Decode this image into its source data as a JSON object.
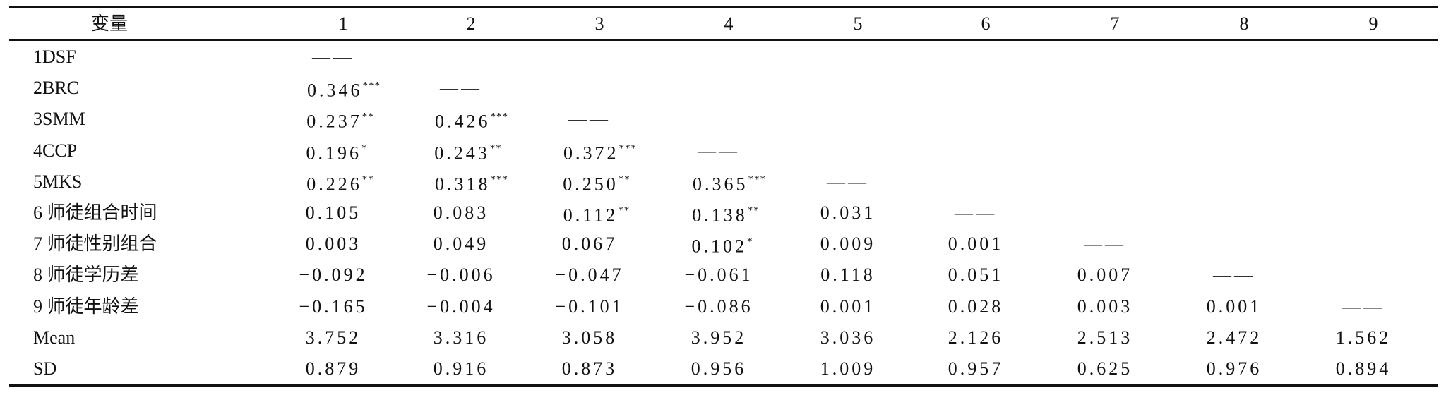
{
  "table": {
    "header": [
      "变量",
      "1",
      "2",
      "3",
      "4",
      "5",
      "6",
      "7",
      "8",
      "9"
    ],
    "rows": [
      {
        "label": "1DSF",
        "cells": [
          {
            "value": "——"
          }
        ]
      },
      {
        "label": "2BRC",
        "cells": [
          {
            "value": "0.346",
            "sig": "***"
          },
          {
            "value": "——"
          }
        ]
      },
      {
        "label": "3SMM",
        "cells": [
          {
            "value": "0.237",
            "sig": "**"
          },
          {
            "value": "0.426",
            "sig": "***"
          },
          {
            "value": "——"
          }
        ]
      },
      {
        "label": "4CCP",
        "cells": [
          {
            "value": "0.196",
            "sig": "*"
          },
          {
            "value": "0.243",
            "sig": "**"
          },
          {
            "value": "0.372",
            "sig": "***"
          },
          {
            "value": "——"
          }
        ]
      },
      {
        "label": "5MKS",
        "cells": [
          {
            "value": "0.226",
            "sig": "**"
          },
          {
            "value": "0.318",
            "sig": "***"
          },
          {
            "value": "0.250",
            "sig": "**"
          },
          {
            "value": "0.365",
            "sig": "***"
          },
          {
            "value": "——"
          }
        ]
      },
      {
        "label": "6 师徒组合时间",
        "cells": [
          {
            "value": "0.105"
          },
          {
            "value": "0.083"
          },
          {
            "value": "0.112",
            "sig": "**"
          },
          {
            "value": "0.138",
            "sig": "**"
          },
          {
            "value": "0.031"
          },
          {
            "value": "——"
          }
        ]
      },
      {
        "label": "7 师徒性别组合",
        "cells": [
          {
            "value": "0.003"
          },
          {
            "value": "0.049"
          },
          {
            "value": "0.067"
          },
          {
            "value": "0.102",
            "sig": "*"
          },
          {
            "value": "0.009"
          },
          {
            "value": "0.001"
          },
          {
            "value": "——"
          }
        ]
      },
      {
        "label": "8 师徒学历差",
        "cells": [
          {
            "value": "−0.092"
          },
          {
            "value": "−0.006"
          },
          {
            "value": "−0.047"
          },
          {
            "value": "−0.061"
          },
          {
            "value": "0.118"
          },
          {
            "value": "0.051"
          },
          {
            "value": "0.007"
          },
          {
            "value": "——"
          }
        ]
      },
      {
        "label": "9 师徒年龄差",
        "cells": [
          {
            "value": "−0.165"
          },
          {
            "value": "−0.004"
          },
          {
            "value": "−0.101"
          },
          {
            "value": "−0.086"
          },
          {
            "value": "0.001"
          },
          {
            "value": "0.028"
          },
          {
            "value": "0.003"
          },
          {
            "value": "0.001"
          },
          {
            "value": "——"
          }
        ]
      },
      {
        "label": "Mean",
        "cells": [
          {
            "value": "3.752"
          },
          {
            "value": "3.316"
          },
          {
            "value": "3.058"
          },
          {
            "value": "3.952"
          },
          {
            "value": "3.036"
          },
          {
            "value": "2.126"
          },
          {
            "value": "2.513"
          },
          {
            "value": "2.472"
          },
          {
            "value": "1.562"
          }
        ]
      },
      {
        "label": "SD",
        "cells": [
          {
            "value": "0.879"
          },
          {
            "value": "0.916"
          },
          {
            "value": "0.873"
          },
          {
            "value": "0.956"
          },
          {
            "value": "1.009"
          },
          {
            "value": "0.957"
          },
          {
            "value": "0.625"
          },
          {
            "value": "0.976"
          },
          {
            "value": "0.894"
          }
        ]
      }
    ]
  }
}
